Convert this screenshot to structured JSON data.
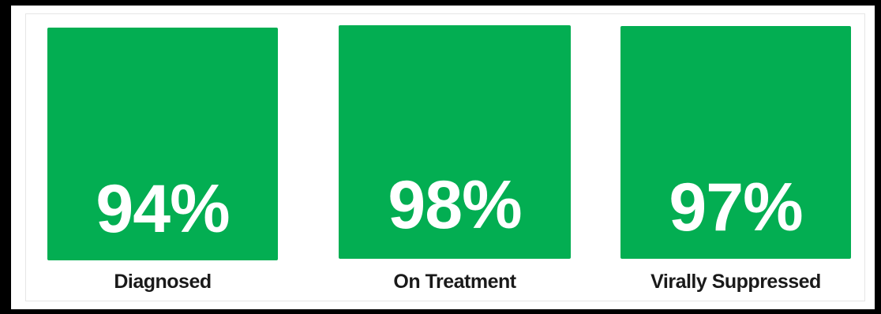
{
  "colors": {
    "box_fill": "#03ae52",
    "value_text": "#ffffff",
    "label_text": "#1a1a1a",
    "frame": "#000000"
  },
  "chart_data": {
    "type": "bar",
    "categories": [
      "Diagnosed",
      "On Treatment",
      "Virally Suppressed"
    ],
    "values": [
      94,
      98,
      97
    ],
    "value_labels": [
      "94%",
      "98%",
      "97%"
    ],
    "title": "",
    "xlabel": "",
    "ylabel": "",
    "unit": "%"
  }
}
